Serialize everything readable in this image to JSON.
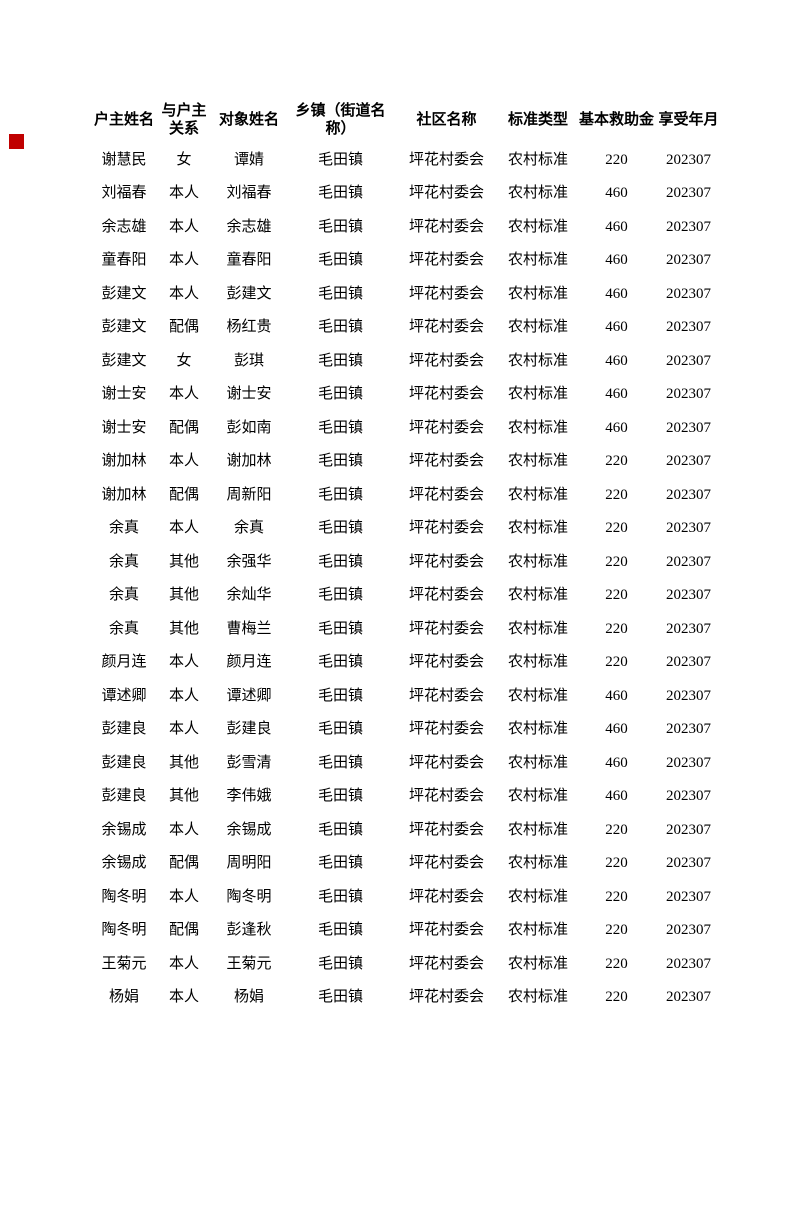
{
  "page": {
    "marker_color": "#c00000"
  },
  "table": {
    "headers": [
      "户主姓名",
      "与户主\n关系",
      "对象姓名",
      "乡镇（街道名\n称）",
      "社区名称",
      "标准类型",
      "基本救助金",
      "享受年月"
    ],
    "rows": [
      [
        "谢慧民",
        "女",
        "谭婧",
        "毛田镇",
        "坪花村委会",
        "农村标准",
        "220",
        "202307"
      ],
      [
        "刘福春",
        "本人",
        "刘福春",
        "毛田镇",
        "坪花村委会",
        "农村标准",
        "460",
        "202307"
      ],
      [
        "余志雄",
        "本人",
        "余志雄",
        "毛田镇",
        "坪花村委会",
        "农村标准",
        "460",
        "202307"
      ],
      [
        "童春阳",
        "本人",
        "童春阳",
        "毛田镇",
        "坪花村委会",
        "农村标准",
        "460",
        "202307"
      ],
      [
        "彭建文",
        "本人",
        "彭建文",
        "毛田镇",
        "坪花村委会",
        "农村标准",
        "460",
        "202307"
      ],
      [
        "彭建文",
        "配偶",
        "杨红贵",
        "毛田镇",
        "坪花村委会",
        "农村标准",
        "460",
        "202307"
      ],
      [
        "彭建文",
        "女",
        "彭琪",
        "毛田镇",
        "坪花村委会",
        "农村标准",
        "460",
        "202307"
      ],
      [
        "谢士安",
        "本人",
        "谢士安",
        "毛田镇",
        "坪花村委会",
        "农村标准",
        "460",
        "202307"
      ],
      [
        "谢士安",
        "配偶",
        "彭如南",
        "毛田镇",
        "坪花村委会",
        "农村标准",
        "460",
        "202307"
      ],
      [
        "谢加林",
        "本人",
        "谢加林",
        "毛田镇",
        "坪花村委会",
        "农村标准",
        "220",
        "202307"
      ],
      [
        "谢加林",
        "配偶",
        "周新阳",
        "毛田镇",
        "坪花村委会",
        "农村标准",
        "220",
        "202307"
      ],
      [
        "余真",
        "本人",
        "余真",
        "毛田镇",
        "坪花村委会",
        "农村标准",
        "220",
        "202307"
      ],
      [
        "余真",
        "其他",
        "余强华",
        "毛田镇",
        "坪花村委会",
        "农村标准",
        "220",
        "202307"
      ],
      [
        "余真",
        "其他",
        "余灿华",
        "毛田镇",
        "坪花村委会",
        "农村标准",
        "220",
        "202307"
      ],
      [
        "余真",
        "其他",
        "曹梅兰",
        "毛田镇",
        "坪花村委会",
        "农村标准",
        "220",
        "202307"
      ],
      [
        "颜月连",
        "本人",
        "颜月连",
        "毛田镇",
        "坪花村委会",
        "农村标准",
        "220",
        "202307"
      ],
      [
        "谭述卿",
        "本人",
        "谭述卿",
        "毛田镇",
        "坪花村委会",
        "农村标准",
        "460",
        "202307"
      ],
      [
        "彭建良",
        "本人",
        "彭建良",
        "毛田镇",
        "坪花村委会",
        "农村标准",
        "460",
        "202307"
      ],
      [
        "彭建良",
        "其他",
        "彭雪清",
        "毛田镇",
        "坪花村委会",
        "农村标准",
        "460",
        "202307"
      ],
      [
        "彭建良",
        "其他",
        "李伟娥",
        "毛田镇",
        "坪花村委会",
        "农村标准",
        "460",
        "202307"
      ],
      [
        "余锡成",
        "本人",
        "余锡成",
        "毛田镇",
        "坪花村委会",
        "农村标准",
        "220",
        "202307"
      ],
      [
        "余锡成",
        "配偶",
        "周明阳",
        "毛田镇",
        "坪花村委会",
        "农村标准",
        "220",
        "202307"
      ],
      [
        "陶冬明",
        "本人",
        "陶冬明",
        "毛田镇",
        "坪花村委会",
        "农村标准",
        "220",
        "202307"
      ],
      [
        "陶冬明",
        "配偶",
        "彭逢秋",
        "毛田镇",
        "坪花村委会",
        "农村标准",
        "220",
        "202307"
      ],
      [
        "王菊元",
        "本人",
        "王菊元",
        "毛田镇",
        "坪花村委会",
        "农村标准",
        "220",
        "202307"
      ],
      [
        "杨娟",
        "本人",
        "杨娟",
        "毛田镇",
        "坪花村委会",
        "农村标准",
        "220",
        "202307"
      ]
    ]
  }
}
